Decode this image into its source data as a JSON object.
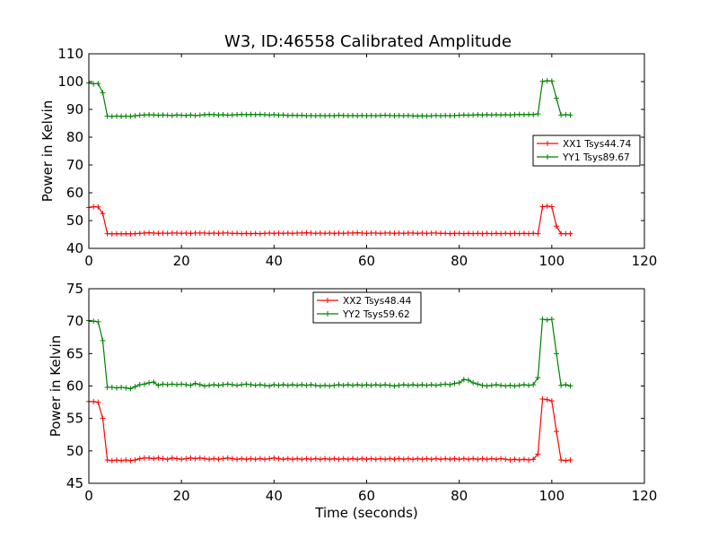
{
  "title": "W3, ID:46558 Calibrated Amplitude",
  "chart_data": [
    {
      "type": "line",
      "xlabel": "",
      "ylabel": "Power in Kelvin",
      "xlim": [
        0,
        120
      ],
      "ylim": [
        40,
        110
      ],
      "xticks": [
        0,
        20,
        40,
        60,
        80,
        100,
        120
      ],
      "yticks": [
        40,
        50,
        60,
        70,
        80,
        90,
        100,
        110
      ],
      "grid": false,
      "legend": "center-right",
      "series": [
        {
          "name": "XX1 Tsys44.74",
          "color": "#ff0000",
          "marker": "+",
          "x": [
            0,
            1,
            2,
            3,
            4,
            5,
            6,
            7,
            8,
            9,
            10,
            11,
            12,
            13,
            14,
            15,
            16,
            17,
            18,
            19,
            20,
            21,
            22,
            23,
            24,
            25,
            26,
            27,
            28,
            29,
            30,
            31,
            32,
            33,
            34,
            35,
            36,
            37,
            38,
            39,
            40,
            41,
            42,
            43,
            44,
            45,
            46,
            47,
            48,
            49,
            50,
            51,
            52,
            53,
            54,
            55,
            56,
            57,
            58,
            59,
            60,
            61,
            62,
            63,
            64,
            65,
            66,
            67,
            68,
            69,
            70,
            71,
            72,
            73,
            74,
            75,
            76,
            77,
            78,
            79,
            80,
            81,
            82,
            83,
            84,
            85,
            86,
            87,
            88,
            89,
            90,
            91,
            92,
            93,
            94,
            95,
            96,
            97,
            98,
            99,
            100,
            101,
            102,
            103,
            104
          ],
          "y": [
            54.7,
            55,
            54.9,
            52.5,
            45.3,
            45.2,
            45.3,
            45.2,
            45.3,
            45.2,
            45.3,
            45.4,
            45.5,
            45.6,
            45.5,
            45.4,
            45.5,
            45.4,
            45.5,
            45.5,
            45.4,
            45.5,
            45.4,
            45.5,
            45.5,
            45.5,
            45.4,
            45.5,
            45.4,
            45.5,
            45.5,
            45.4,
            45.4,
            45.3,
            45.4,
            45.3,
            45.4,
            45.3,
            45.4,
            45.5,
            45.4,
            45.5,
            45.4,
            45.5,
            45.4,
            45.5,
            45.5,
            45.6,
            45.5,
            45.4,
            45.5,
            45.4,
            45.5,
            45.4,
            45.5,
            45.4,
            45.5,
            45.5,
            45.6,
            45.5,
            45.4,
            45.5,
            45.5,
            45.4,
            45.5,
            45.5,
            45.4,
            45.5,
            45.4,
            45.5,
            45.5,
            45.4,
            45.5,
            45.4,
            45.5,
            45.5,
            45.4,
            45.4,
            45.3,
            45.4,
            45.4,
            45.3,
            45.4,
            45.3,
            45.4,
            45.3,
            45.4,
            45.3,
            45.4,
            45.3,
            45.4,
            45.3,
            45.4,
            45.3,
            45.4,
            45.3,
            45.4,
            45.3,
            55,
            55.2,
            55,
            48,
            45.3,
            45.3,
            45.3
          ]
        },
        {
          "name": "YY1 Tsys89.67",
          "color": "#008000",
          "marker": "+",
          "x": [
            0,
            1,
            2,
            3,
            4,
            5,
            6,
            7,
            8,
            9,
            10,
            11,
            12,
            13,
            14,
            15,
            16,
            17,
            18,
            19,
            20,
            21,
            22,
            23,
            24,
            25,
            26,
            27,
            28,
            29,
            30,
            31,
            32,
            33,
            34,
            35,
            36,
            37,
            38,
            39,
            40,
            41,
            42,
            43,
            44,
            45,
            46,
            47,
            48,
            49,
            50,
            51,
            52,
            53,
            54,
            55,
            56,
            57,
            58,
            59,
            60,
            61,
            62,
            63,
            64,
            65,
            66,
            67,
            68,
            69,
            70,
            71,
            72,
            73,
            74,
            75,
            76,
            77,
            78,
            79,
            80,
            81,
            82,
            83,
            84,
            85,
            86,
            87,
            88,
            89,
            90,
            91,
            92,
            93,
            94,
            95,
            96,
            97,
            98,
            99,
            100,
            101,
            102,
            103,
            104
          ],
          "y": [
            99.5,
            99.2,
            99.3,
            96,
            87.6,
            87.5,
            87.6,
            87.5,
            87.6,
            87.5,
            87.7,
            87.9,
            88,
            88.1,
            88,
            87.9,
            88,
            87.9,
            87.8,
            88,
            87.9,
            87.8,
            88,
            87.8,
            87.9,
            88.1,
            88.2,
            88.1,
            88,
            88.1,
            87.9,
            88,
            88.1,
            88.2,
            88.1,
            88.2,
            88.1,
            88.2,
            88.1,
            88,
            88.1,
            87.9,
            88,
            87.8,
            87.9,
            87.8,
            87.9,
            87.7,
            87.8,
            87.7,
            87.8,
            87.7,
            87.8,
            87.7,
            87.9,
            87.8,
            87.7,
            87.8,
            87.7,
            87.8,
            87.7,
            87.8,
            87.7,
            87.8,
            87.9,
            87.8,
            87.7,
            87.8,
            87.7,
            87.8,
            87.7,
            87.6,
            87.7,
            87.6,
            87.7,
            87.8,
            87.7,
            87.8,
            87.7,
            87.8,
            87.9,
            88,
            87.9,
            88,
            88.1,
            88,
            88.1,
            88,
            88.1,
            88,
            88.1,
            88,
            88.1,
            88.2,
            88.1,
            88.2,
            88.1,
            88.4,
            100.1,
            100.3,
            100.2,
            94,
            88,
            88.1,
            88
          ]
        }
      ]
    },
    {
      "type": "line",
      "xlabel": "Time (seconds)",
      "ylabel": "Power in Kelvin",
      "xlim": [
        0,
        120
      ],
      "ylim": [
        45,
        75
      ],
      "xticks": [
        0,
        20,
        40,
        60,
        80,
        100,
        120
      ],
      "yticks": [
        45,
        50,
        55,
        60,
        65,
        70,
        75
      ],
      "grid": false,
      "legend": "top-center",
      "series": [
        {
          "name": "XX2 Tsys48.44",
          "color": "#ff0000",
          "marker": "+",
          "x": [
            0,
            1,
            2,
            3,
            4,
            5,
            6,
            7,
            8,
            9,
            10,
            11,
            12,
            13,
            14,
            15,
            16,
            17,
            18,
            19,
            20,
            21,
            22,
            23,
            24,
            25,
            26,
            27,
            28,
            29,
            30,
            31,
            32,
            33,
            34,
            35,
            36,
            37,
            38,
            39,
            40,
            41,
            42,
            43,
            44,
            45,
            46,
            47,
            48,
            49,
            50,
            51,
            52,
            53,
            54,
            55,
            56,
            57,
            58,
            59,
            60,
            61,
            62,
            63,
            64,
            65,
            66,
            67,
            68,
            69,
            70,
            71,
            72,
            73,
            74,
            75,
            76,
            77,
            78,
            79,
            80,
            81,
            82,
            83,
            84,
            85,
            86,
            87,
            88,
            89,
            90,
            91,
            92,
            93,
            94,
            95,
            96,
            97,
            98,
            99,
            100,
            101,
            102,
            103,
            104
          ],
          "y": [
            57.6,
            57.6,
            57.5,
            55,
            48.6,
            48.5,
            48.6,
            48.5,
            48.6,
            48.5,
            48.6,
            48.8,
            48.9,
            48.9,
            48.8,
            48.9,
            48.8,
            48.7,
            48.9,
            48.8,
            48.7,
            48.8,
            48.9,
            48.8,
            48.9,
            48.8,
            48.7,
            48.8,
            48.7,
            48.8,
            48.9,
            48.8,
            48.7,
            48.8,
            48.7,
            48.8,
            48.7,
            48.8,
            48.7,
            48.8,
            48.9,
            48.8,
            48.7,
            48.8,
            48.7,
            48.8,
            48.7,
            48.8,
            48.7,
            48.8,
            48.7,
            48.8,
            48.7,
            48.8,
            48.7,
            48.8,
            48.7,
            48.8,
            48.7,
            48.8,
            48.7,
            48.8,
            48.7,
            48.8,
            48.7,
            48.8,
            48.7,
            48.8,
            48.7,
            48.8,
            48.7,
            48.8,
            48.7,
            48.8,
            48.7,
            48.8,
            48.7,
            48.8,
            48.7,
            48.8,
            48.7,
            48.8,
            48.7,
            48.8,
            48.7,
            48.8,
            48.7,
            48.8,
            48.7,
            48.8,
            48.7,
            48.6,
            48.7,
            48.6,
            48.7,
            48.6,
            48.7,
            49.5,
            58,
            57.9,
            57.7,
            53,
            48.6,
            48.5,
            48.6
          ]
        },
        {
          "name": "YY2 Tsys59.62",
          "color": "#008000",
          "marker": "+",
          "x": [
            0,
            1,
            2,
            3,
            4,
            5,
            6,
            7,
            8,
            9,
            10,
            11,
            12,
            13,
            14,
            15,
            16,
            17,
            18,
            19,
            20,
            21,
            22,
            23,
            24,
            25,
            26,
            27,
            28,
            29,
            30,
            31,
            32,
            33,
            34,
            35,
            36,
            37,
            38,
            39,
            40,
            41,
            42,
            43,
            44,
            45,
            46,
            47,
            48,
            49,
            50,
            51,
            52,
            53,
            54,
            55,
            56,
            57,
            58,
            59,
            60,
            61,
            62,
            63,
            64,
            65,
            66,
            67,
            68,
            69,
            70,
            71,
            72,
            73,
            74,
            75,
            76,
            77,
            78,
            79,
            80,
            81,
            82,
            83,
            84,
            85,
            86,
            87,
            88,
            89,
            90,
            91,
            92,
            93,
            94,
            95,
            96,
            97,
            98,
            99,
            100,
            101,
            102,
            103,
            104
          ],
          "y": [
            70.1,
            70,
            69.9,
            67,
            59.8,
            59.8,
            59.7,
            59.8,
            59.7,
            59.6,
            59.9,
            60.2,
            60.3,
            60.5,
            60.6,
            60.1,
            60.3,
            60.2,
            60.3,
            60.2,
            60.3,
            60.2,
            60.1,
            60.4,
            60.2,
            60,
            60.1,
            60.2,
            60.1,
            60.2,
            60.3,
            60.2,
            60.1,
            60.2,
            60.3,
            60.2,
            60.1,
            60.2,
            60.1,
            60,
            60.2,
            60.1,
            60.2,
            60.1,
            60.2,
            60.1,
            60.2,
            60.1,
            60.2,
            60.1,
            60,
            60.1,
            60,
            60.1,
            60.2,
            60.1,
            60.2,
            60.1,
            60.2,
            60.1,
            60.2,
            60.1,
            60.2,
            60.1,
            60.2,
            60.1,
            60,
            60.1,
            60.2,
            60.1,
            60.2,
            60.1,
            60.2,
            60.1,
            60.2,
            60.1,
            60.2,
            60.3,
            60.2,
            60.4,
            60.5,
            61,
            60.9,
            60.5,
            60.3,
            60.1,
            60,
            60.1,
            60.2,
            60.1,
            60,
            60.1,
            60,
            60.1,
            60.2,
            60.1,
            60.2,
            61.3,
            70.3,
            70.2,
            70.3,
            65,
            60.1,
            60.2,
            60
          ]
        }
      ]
    }
  ]
}
